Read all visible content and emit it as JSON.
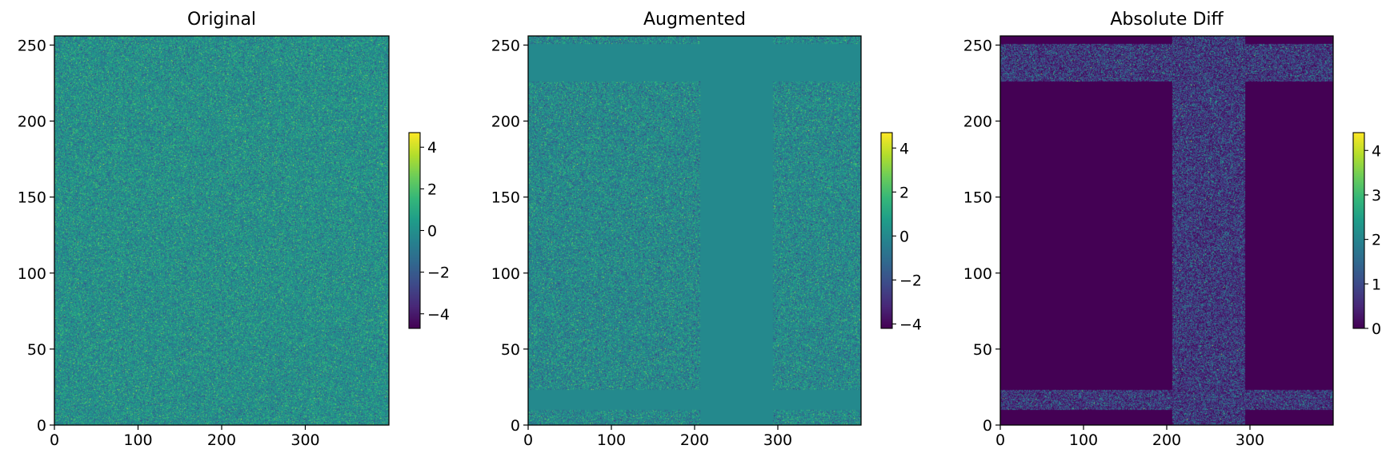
{
  "chart_data": [
    {
      "type": "heatmap",
      "title": "Original",
      "colormap": "viridis",
      "image_size": {
        "width": 400,
        "height": 256
      },
      "xlim": [
        0,
        400
      ],
      "ylim": [
        0,
        256
      ],
      "xticks": [
        "0",
        "100",
        "200",
        "300"
      ],
      "xtick_values": [
        0,
        100,
        200,
        300
      ],
      "yticks": [
        "0",
        "50",
        "100",
        "150",
        "200",
        "250"
      ],
      "ytick_values": [
        0,
        50,
        100,
        150,
        200,
        250
      ],
      "pattern": "gaussian noise, mean 0, std 1",
      "colorbar": {
        "min": -4.7,
        "max": 4.7,
        "ticks": [
          "−4",
          "−2",
          "0",
          "2",
          "4"
        ],
        "tick_values": [
          -4,
          -2,
          0,
          2,
          4
        ]
      }
    },
    {
      "type": "heatmap",
      "title": "Augmented",
      "colormap": "viridis",
      "image_size": {
        "width": 400,
        "height": 256
      },
      "xlim": [
        0,
        400
      ],
      "ylim": [
        0,
        256
      ],
      "xticks": [
        "0",
        "100",
        "200",
        "300"
      ],
      "xtick_values": [
        0,
        100,
        200,
        300
      ],
      "yticks": [
        "0",
        "50",
        "100",
        "150",
        "200",
        "250"
      ],
      "ytick_values": [
        0,
        50,
        100,
        150,
        200,
        250
      ],
      "pattern": "original noise with masked bands set to 0",
      "masked_columns": [
        [
          207,
          294
        ]
      ],
      "masked_rows": [
        [
          10,
          23
        ],
        [
          226,
          251
        ]
      ],
      "colorbar": {
        "min": -4.2,
        "max": 4.7,
        "ticks": [
          "−4",
          "−2",
          "0",
          "2",
          "4"
        ],
        "tick_values": [
          -4,
          -2,
          0,
          2,
          4
        ]
      }
    },
    {
      "type": "heatmap",
      "title": "Absolute Diff",
      "colormap": "viridis",
      "image_size": {
        "width": 400,
        "height": 256
      },
      "xlim": [
        0,
        400
      ],
      "ylim": [
        0,
        256
      ],
      "xticks": [
        "0",
        "100",
        "200",
        "300"
      ],
      "xtick_values": [
        0,
        100,
        200,
        300
      ],
      "yticks": [
        "0",
        "50",
        "100",
        "150",
        "200",
        "250"
      ],
      "ytick_values": [
        0,
        50,
        100,
        150,
        200,
        250
      ],
      "pattern": "absolute value of original noise inside masked bands, 0 elsewhere",
      "masked_columns": [
        [
          207,
          294
        ]
      ],
      "masked_rows": [
        [
          10,
          23
        ],
        [
          226,
          251
        ]
      ],
      "colorbar": {
        "min": 0,
        "max": 4.4,
        "ticks": [
          "0",
          "1",
          "2",
          "3",
          "4"
        ],
        "tick_values": [
          0,
          1,
          2,
          3,
          4
        ]
      }
    }
  ]
}
